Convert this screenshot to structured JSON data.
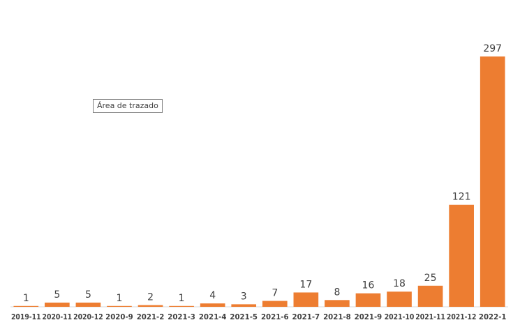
{
  "tooltip": {
    "text": "Área de trazado"
  },
  "chart_data": {
    "type": "bar",
    "categories": [
      "2019-11",
      "2020-11",
      "2020-12",
      "2020-9",
      "2021-2",
      "2021-3",
      "2021-4",
      "2021-5",
      "2021-6",
      "2021-7",
      "2021-8",
      "2021-9",
      "2021-10",
      "2021-11",
      "2021-12",
      "2022-1"
    ],
    "values": [
      1,
      5,
      5,
      1,
      2,
      1,
      4,
      3,
      7,
      17,
      8,
      16,
      18,
      25,
      121,
      297
    ],
    "title": "",
    "xlabel": "",
    "ylabel": "",
    "ylim": [
      0,
      297
    ],
    "grid": false,
    "legend": "none",
    "colors": {
      "bar": "#ED7D31",
      "label": "#404040",
      "axis": "#D9D9D9"
    }
  }
}
